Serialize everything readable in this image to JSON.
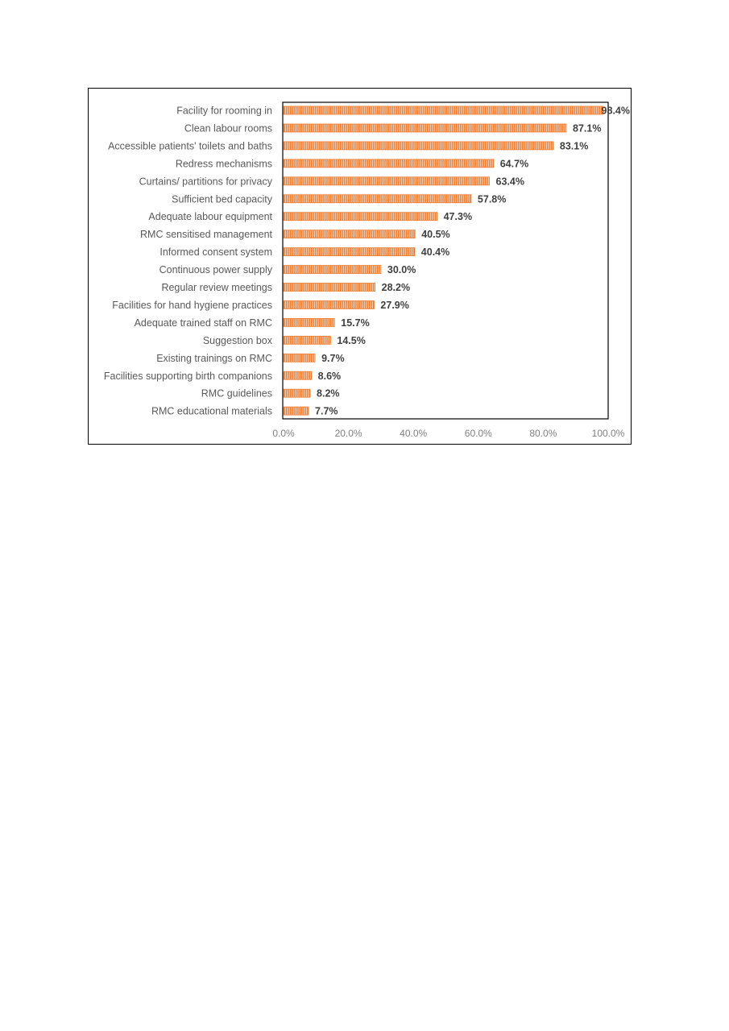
{
  "chart_data": {
    "type": "bar",
    "orientation": "horizontal",
    "categories": [
      "Facility for rooming in",
      "Clean labour rooms",
      "Accessible patients' toilets and baths",
      "Redress mechanisms",
      "Curtains/ partitions for privacy",
      "Sufficient bed capacity",
      "Adequate labour equipment",
      "RMC sensitised management",
      "Informed consent system",
      "Continuous power supply",
      "Regular review meetings",
      "Facilities for hand hygiene practices",
      "Adequate trained staff on RMC",
      "Suggestion box",
      "Existing trainings on RMC",
      "Facilities supporting birth companions",
      "RMC guidelines",
      "RMC educational materials"
    ],
    "values": [
      98.4,
      87.1,
      83.1,
      64.7,
      63.4,
      57.8,
      47.3,
      40.5,
      40.4,
      30.0,
      28.2,
      27.9,
      15.7,
      14.5,
      9.7,
      8.6,
      8.2,
      7.7
    ],
    "data_labels": [
      "98.4%",
      "87.1%",
      "83.1%",
      "64.7%",
      "63.4%",
      "57.8%",
      "47.3%",
      "40.5%",
      "40.4%",
      "30.0%",
      "28.2%",
      "27.9%",
      "15.7%",
      "14.5%",
      "9.7%",
      "8.6%",
      "8.2%",
      "7.7%"
    ],
    "xlim": [
      0,
      100
    ],
    "x_ticks": [
      0,
      20,
      40,
      60,
      80,
      100
    ],
    "x_tick_labels": [
      "0.0%",
      "20.0%",
      "40.0%",
      "60.0%",
      "80.0%",
      "100.0%"
    ],
    "title": "",
    "xlabel": "",
    "ylabel": "",
    "grid": false,
    "bar_color": "#ED7D31",
    "bar_pattern": "vertical-hatch"
  }
}
